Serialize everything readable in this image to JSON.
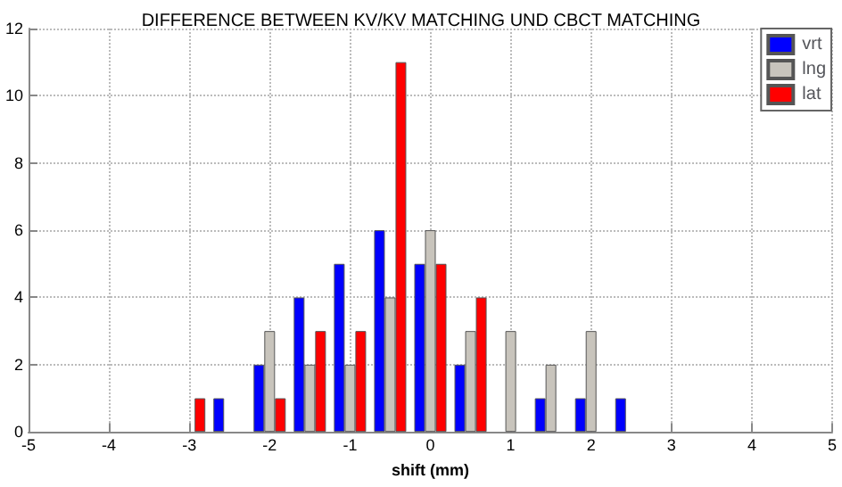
{
  "chart_data": {
    "type": "bar",
    "title": "DIFFERENCE BETWEEN KV/KV MATCHING UND CBCT MATCHING",
    "xlabel": "shift (mm)",
    "x": [
      -3,
      -2.5,
      -2,
      -1.5,
      -1,
      -0.5,
      0,
      0.5,
      1,
      1.5,
      2,
      2.5
    ],
    "series": [
      {
        "name": "vrt",
        "color": "#0000ff",
        "values": [
          0,
          1,
          2,
          4,
          5,
          6,
          5,
          2,
          0,
          1,
          1,
          1
        ]
      },
      {
        "name": "lng",
        "color": "#c8c4bc",
        "values": [
          0,
          0,
          3,
          2,
          2,
          4,
          6,
          3,
          3,
          2,
          3,
          0
        ]
      },
      {
        "name": "lat",
        "color": "#ff0000",
        "values": [
          1,
          0,
          1,
          3,
          3,
          11,
          5,
          4,
          0,
          0,
          0,
          0
        ]
      }
    ],
    "xlim": [
      -5,
      5
    ],
    "xticks": [
      -5,
      -4,
      -3,
      -2,
      -1,
      0,
      1,
      2,
      3,
      4,
      5
    ],
    "ylim": [
      0,
      12
    ],
    "yticks": [
      0,
      2,
      4,
      6,
      8,
      10,
      12
    ],
    "grid": true,
    "legend": "top right"
  }
}
